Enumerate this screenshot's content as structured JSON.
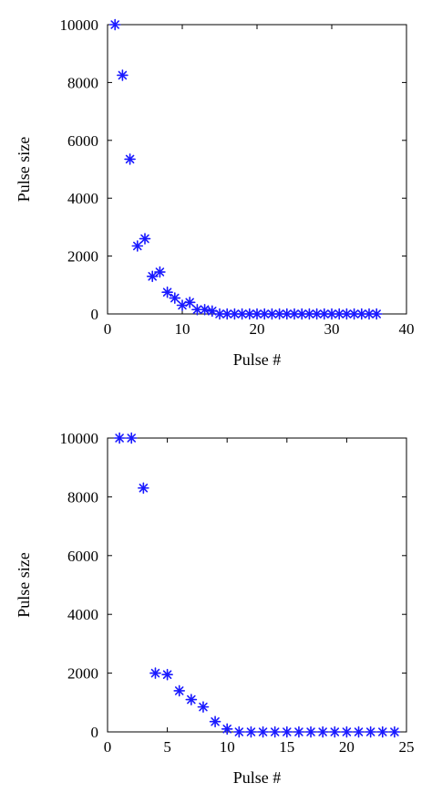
{
  "chart_data": [
    {
      "type": "scatter",
      "xlabel": "Pulse #",
      "ylabel": "Pulse size",
      "xlim": [
        0,
        40
      ],
      "ylim": [
        0,
        10000
      ],
      "xticks": [
        0,
        10,
        20,
        30,
        40
      ],
      "yticks": [
        0,
        2000,
        4000,
        6000,
        8000,
        10000
      ],
      "grid": false,
      "marker": "asterisk",
      "color": "#1a1aff",
      "series": [
        {
          "x": [
            1,
            2,
            3,
            4,
            5,
            6,
            7,
            8,
            9,
            10,
            11,
            12,
            13,
            14,
            15,
            16,
            17,
            18,
            19,
            20,
            21,
            22,
            23,
            24,
            25,
            26,
            27,
            28,
            29,
            30,
            31,
            32,
            33,
            34,
            35,
            36
          ],
          "y": [
            10000,
            8250,
            5350,
            2350,
            2600,
            1300,
            1450,
            750,
            550,
            300,
            400,
            150,
            150,
            100,
            0,
            0,
            0,
            0,
            0,
            0,
            0,
            0,
            0,
            0,
            0,
            0,
            0,
            0,
            0,
            0,
            0,
            0,
            0,
            0,
            0,
            0
          ]
        }
      ]
    },
    {
      "type": "scatter",
      "xlabel": "Pulse #",
      "ylabel": "Pulse size",
      "xlim": [
        0,
        25
      ],
      "ylim": [
        0,
        10000
      ],
      "xticks": [
        0,
        5,
        10,
        15,
        20,
        25
      ],
      "yticks": [
        0,
        2000,
        4000,
        6000,
        8000,
        10000
      ],
      "grid": false,
      "marker": "asterisk",
      "color": "#1a1aff",
      "series": [
        {
          "x": [
            1,
            2,
            3,
            4,
            5,
            6,
            7,
            8,
            9,
            10,
            11,
            12,
            13,
            14,
            15,
            16,
            17,
            18,
            19,
            20,
            21,
            22,
            23,
            24
          ],
          "y": [
            10000,
            10000,
            8300,
            2000,
            1950,
            1400,
            1100,
            850,
            350,
            100,
            0,
            0,
            0,
            0,
            0,
            0,
            0,
            0,
            0,
            0,
            0,
            0,
            0,
            0
          ]
        }
      ]
    }
  ]
}
